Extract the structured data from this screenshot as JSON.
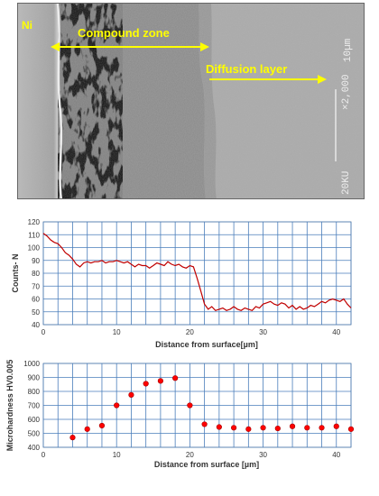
{
  "micrograph": {
    "label_ni": "Ni",
    "label_compound": "Compound zone",
    "label_diffusion": "Diffusion layer",
    "scale_text": "10µm",
    "mag_text": "×2,000",
    "kv_text": "20KU"
  },
  "chart_data": [
    {
      "type": "line",
      "title": "",
      "xlabel": "Distance from surface[µm]",
      "ylabel": "Counts- N",
      "xlim": [
        0,
        42
      ],
      "ylim": [
        40,
        120
      ],
      "xticks": [
        0,
        10,
        20,
        30,
        40
      ],
      "yticks": [
        40,
        50,
        60,
        70,
        80,
        90,
        100,
        110,
        120
      ],
      "grid": true,
      "color": "#c00000",
      "series": [
        {
          "x": [
            0,
            0.5,
            1,
            1.5,
            2,
            2.5,
            3,
            3.5,
            4,
            4.5,
            5,
            5.5,
            6,
            6.5,
            7,
            7.5,
            8,
            8.5,
            9,
            9.5,
            10,
            10.5,
            11,
            11.5,
            12,
            12.5,
            13,
            13.5,
            14,
            14.5,
            15,
            15.5,
            16,
            16.5,
            17,
            17.5,
            18,
            18.5,
            19,
            19.5,
            20,
            20.5,
            21,
            21.5,
            22,
            22.5,
            23,
            23.5,
            24,
            24.5,
            25,
            25.5,
            26,
            26.5,
            27,
            27.5,
            28,
            28.5,
            29,
            29.5,
            30,
            30.5,
            31,
            31.5,
            32,
            32.5,
            33,
            33.5,
            34,
            34.5,
            35,
            35.5,
            36,
            36.5,
            37,
            37.5,
            38,
            38.5,
            39,
            39.5,
            40,
            40.5,
            41,
            41.5,
            42
          ],
          "values": [
            111,
            109,
            106,
            104,
            103,
            100,
            96,
            94,
            91,
            87,
            85,
            88,
            89,
            88,
            89,
            89,
            90,
            88,
            89,
            89,
            90,
            89,
            88,
            89,
            87,
            85,
            87,
            86,
            86,
            84,
            86,
            88,
            87,
            86,
            89,
            87,
            86,
            87,
            85,
            84,
            86,
            85,
            76,
            66,
            56,
            52,
            54,
            51,
            52,
            53,
            51,
            52,
            54,
            52,
            51,
            53,
            52,
            51,
            54,
            53,
            56,
            57,
            58,
            56,
            55,
            57,
            56,
            53,
            55,
            52,
            54,
            52,
            53,
            55,
            54,
            56,
            58,
            57,
            59,
            60,
            59,
            58,
            60,
            56,
            53
          ]
        }
      ]
    },
    {
      "type": "scatter",
      "title": "",
      "xlabel": "Distance from surface [µm]",
      "ylabel": "Microhardness HV0.005",
      "xlim": [
        0,
        42
      ],
      "ylim": [
        400,
        1000
      ],
      "xticks": [
        0,
        10,
        20,
        30,
        40
      ],
      "yticks": [
        400,
        500,
        600,
        700,
        800,
        900,
        1000
      ],
      "grid": true,
      "color": "#ff0000",
      "series": [
        {
          "x": [
            4,
            6,
            8,
            10,
            12,
            14,
            16,
            18,
            20,
            22,
            24,
            26,
            28,
            30,
            32,
            34,
            36,
            38,
            40,
            42
          ],
          "values": [
            470,
            530,
            555,
            700,
            775,
            855,
            875,
            895,
            700,
            565,
            545,
            540,
            530,
            540,
            535,
            550,
            540,
            540,
            550,
            530
          ]
        }
      ]
    }
  ]
}
